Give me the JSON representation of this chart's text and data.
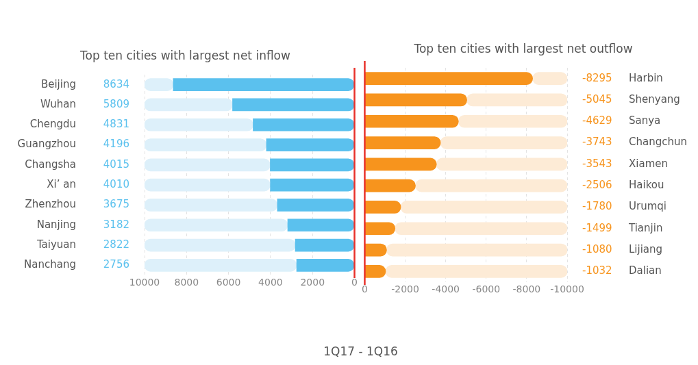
{
  "chart_data": [
    {
      "type": "bar",
      "orientation": "horizontal",
      "title": "Top ten cities with largest net inflow",
      "categories": [
        "Beijing",
        "Wuhan",
        "Chengdu",
        "Guangzhou",
        "Changsha",
        "Xi’ an",
        "Zhenzhou",
        "Nanjing",
        "Taiyuan",
        "Nanchang"
      ],
      "stacked": true,
      "series": [
        {
          "color": "#5bc1ee",
          "values": [
            8634,
            5809,
            4831,
            4196,
            4015,
            4010,
            3675,
            3182,
            2822,
            2756
          ],
          "value_labels": [
            "8634",
            "5809",
            "4831",
            "4196",
            "4015",
            "4010",
            "3675",
            "3182",
            "2822",
            "2756"
          ]
        },
        {
          "color": "#ddf0fa",
          "values": [
            1366,
            4191,
            5169,
            5804,
            5985,
            5990,
            6325,
            6818,
            7178,
            7244
          ]
        }
      ],
      "xlim": [
        10000,
        0
      ],
      "xticks": [
        10000,
        8000,
        6000,
        4000,
        2000,
        0
      ],
      "grid": "x",
      "ref_lines": [
        {
          "axis": "x",
          "value": 0,
          "color": "#e8312a"
        }
      ],
      "xlabel": "1Q17 - 1Q16"
    },
    {
      "type": "bar",
      "orientation": "horizontal",
      "title": "Top ten cities with largest net outflow",
      "categories": [
        "Harbin",
        "Shenyang",
        "Sanya",
        "Changchun",
        "Xiamen",
        "Haikou",
        "Urumqi",
        "Tianjin",
        "Lijiang",
        "Dalian"
      ],
      "stacked": true,
      "series": [
        {
          "color": "#f7941d",
          "values": [
            -8295,
            -5045,
            -4629,
            -3743,
            -3543,
            -2506,
            -1780,
            -1499,
            -1080,
            -1032
          ],
          "value_labels": [
            "-8295",
            "-5045",
            "-4629",
            "-3743",
            "-3543",
            "-2506",
            "-1780",
            "-1499",
            "-1080",
            "-1032"
          ]
        },
        {
          "color": "#fdebd6",
          "values": [
            -1705,
            -4955,
            -5371,
            -6257,
            -6457,
            -7494,
            -8220,
            -8501,
            -8920,
            -8968
          ]
        }
      ],
      "xlim": [
        0,
        -10000
      ],
      "xticks": [
        0,
        -2000,
        -4000,
        -6000,
        -8000,
        -10000
      ],
      "grid": "x",
      "ref_lines": [
        {
          "axis": "x",
          "value": 0,
          "color": "#e8312a"
        }
      ]
    }
  ]
}
